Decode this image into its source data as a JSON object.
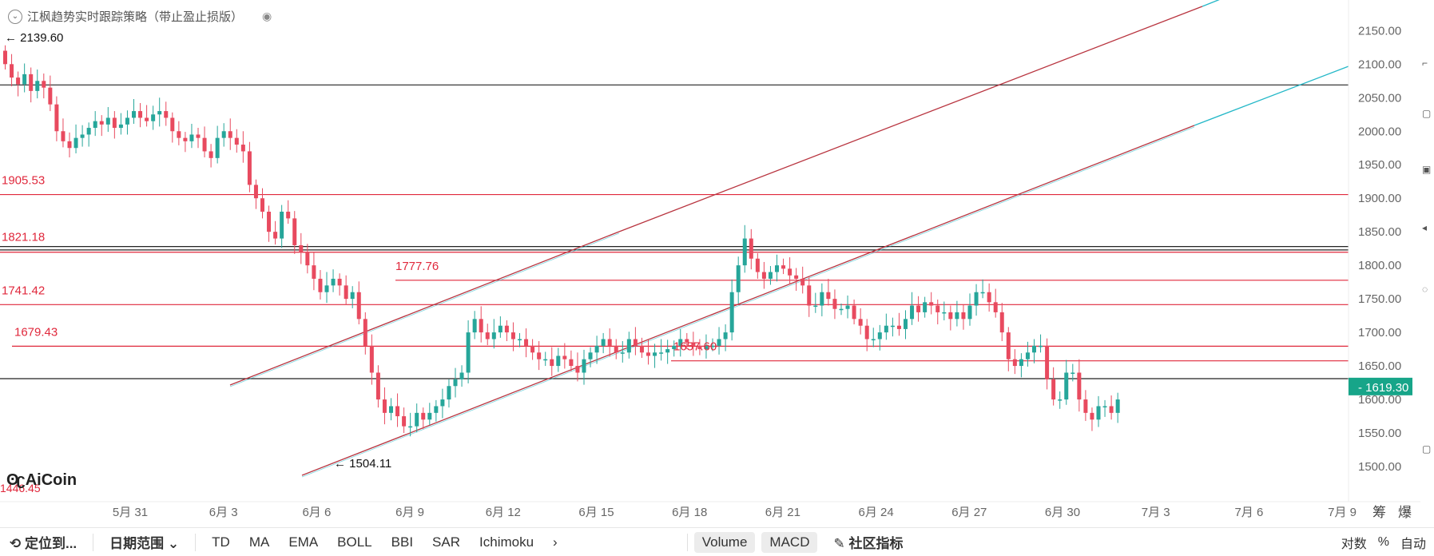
{
  "strategy": {
    "name": "江枫趋势实时跟踪策略（带止盈止损版）"
  },
  "logo": {
    "text": "AiCoin"
  },
  "price_axis": {
    "labels": [
      "2150.00",
      "2100.00",
      "2050.00",
      "2000.00",
      "1950.00",
      "1900.00",
      "1850.00",
      "1800.00",
      "1750.00",
      "1700.00",
      "1650.00",
      "1600.00",
      "1550.00",
      "1500.00"
    ],
    "current_price": "1619.30",
    "current_color": "#17a589"
  },
  "time_axis": {
    "labels": [
      "5月 31",
      "6月 3",
      "6月 6",
      "6月 9",
      "6月 12",
      "6月 15",
      "6月 18",
      "6月 21",
      "6月 24",
      "6月 27",
      "6月 30",
      "7月 3",
      "7月 6",
      "7月 9"
    ],
    "corner_labels": [
      "筹",
      "爆"
    ]
  },
  "annotations": {
    "high": "← 2139.60",
    "low": "← 1504.11",
    "partial_bottom_left": "1446.45",
    "levels": [
      "1905.53",
      "1821.18",
      "1741.42",
      "1679.43",
      "1777.76",
      "1657.60"
    ]
  },
  "toolbar": {
    "locate": "定位到...",
    "date_range": "日期范围",
    "indicators": [
      "TD",
      "MA",
      "EMA",
      "BOLL",
      "BBI",
      "SAR",
      "Ichimoku"
    ],
    "more": "›",
    "volume": "Volume",
    "macd": "MACD",
    "community": "社区指标",
    "log": "对数",
    "percent": "%",
    "auto": "自动"
  },
  "colors": {
    "up": "#26a69a",
    "down": "#e84a5f",
    "level_red": "#e0283c",
    "channel_red": "#b8343f",
    "channel_cyan": "#25b8c8"
  }
}
